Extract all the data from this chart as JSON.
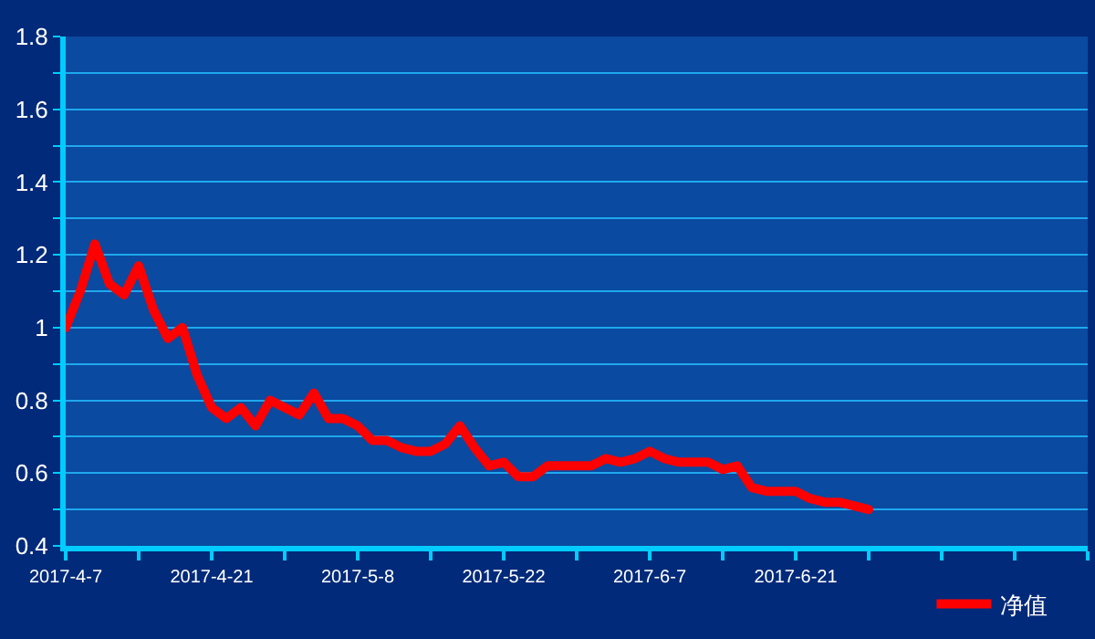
{
  "chart_data": {
    "type": "line",
    "categories": [
      "2017-4-7",
      null,
      null,
      null,
      null,
      null,
      null,
      null,
      null,
      null,
      "2017-4-21",
      null,
      null,
      null,
      null,
      null,
      null,
      null,
      null,
      null,
      "2017-5-8",
      null,
      null,
      null,
      null,
      null,
      null,
      null,
      null,
      null,
      "2017-5-22",
      null,
      null,
      null,
      null,
      null,
      null,
      null,
      null,
      null,
      "2017-6-7",
      null,
      null,
      null,
      null,
      null,
      null,
      null,
      null,
      null,
      "2017-6-21",
      null,
      null,
      null,
      null,
      null,
      null,
      null,
      null,
      null,
      null,
      null,
      null,
      null,
      null,
      null,
      null,
      null,
      null,
      null,
      null
    ],
    "series": [
      {
        "name": "净值",
        "color": "#ff0000",
        "values": [
          1.0,
          1.1,
          1.23,
          1.12,
          1.09,
          1.17,
          1.05,
          0.97,
          1.0,
          0.87,
          0.78,
          0.75,
          0.78,
          0.73,
          0.8,
          0.78,
          0.76,
          0.82,
          0.75,
          0.75,
          0.73,
          0.69,
          0.69,
          0.67,
          0.66,
          0.66,
          0.68,
          0.73,
          0.67,
          0.62,
          0.63,
          0.59,
          0.59,
          0.62,
          0.62,
          0.62,
          0.62,
          0.64,
          0.63,
          0.64,
          0.66,
          0.64,
          0.63,
          0.63,
          0.63,
          0.61,
          0.62,
          0.56,
          0.55,
          0.55,
          0.55,
          0.53,
          0.52,
          0.52,
          0.51,
          0.5,
          null,
          null,
          null,
          null,
          null,
          null,
          null,
          null,
          null,
          null,
          null,
          null,
          null,
          null,
          null
        ]
      }
    ],
    "ylim": [
      0.4,
      1.8
    ],
    "yticks": [
      0.4,
      {
        "value": 0.5,
        "label": null
      },
      0.6,
      {
        "value": 0.7,
        "label": null
      },
      0.8,
      {
        "value": 0.9,
        "label": null
      },
      1,
      {
        "value": 1.1,
        "label": null
      },
      1.2,
      {
        "value": 1.3,
        "label": null
      },
      1.4,
      {
        "value": 1.5,
        "label": null
      },
      1.6,
      {
        "value": 1.7,
        "label": null
      },
      1.8
    ],
    "grid": "y",
    "legend": "bottom right",
    "marker": "none",
    "line_style": "solid"
  }
}
